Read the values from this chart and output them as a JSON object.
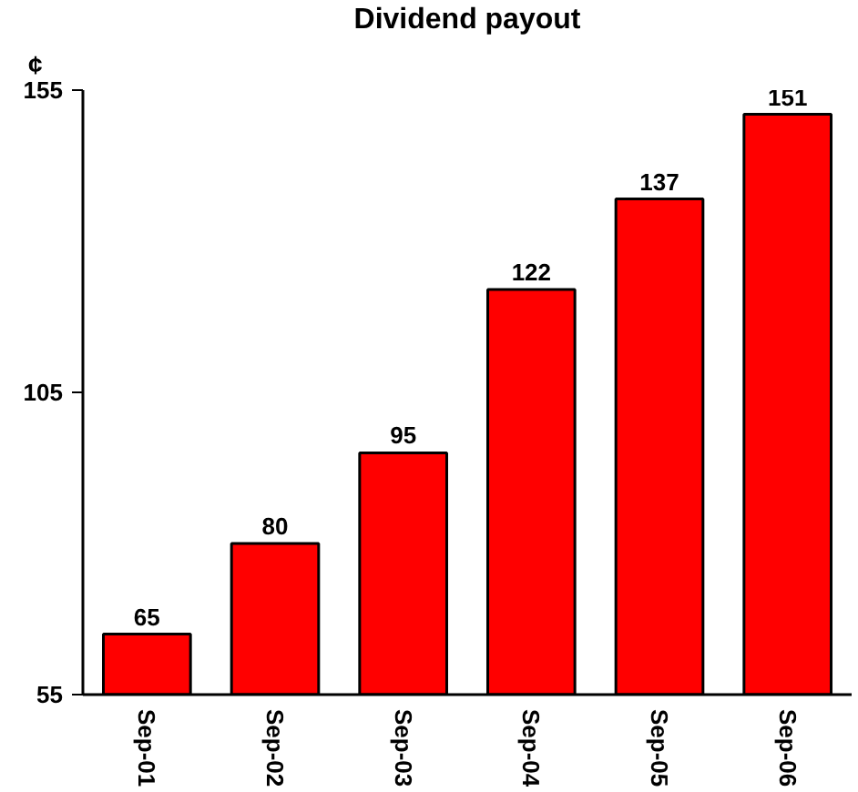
{
  "chart_data": {
    "type": "bar",
    "title": "Dividend payout",
    "ylabel": "¢",
    "categories": [
      "Sep-01",
      "Sep-02",
      "Sep-03",
      "Sep-04",
      "Sep-05",
      "Sep-06"
    ],
    "values": [
      65,
      80,
      95,
      122,
      137,
      151
    ],
    "color": "#ff0000",
    "ylim": [
      55,
      155
    ],
    "yticks": [
      55,
      105,
      155
    ],
    "grid": false,
    "data_labels": true
  }
}
